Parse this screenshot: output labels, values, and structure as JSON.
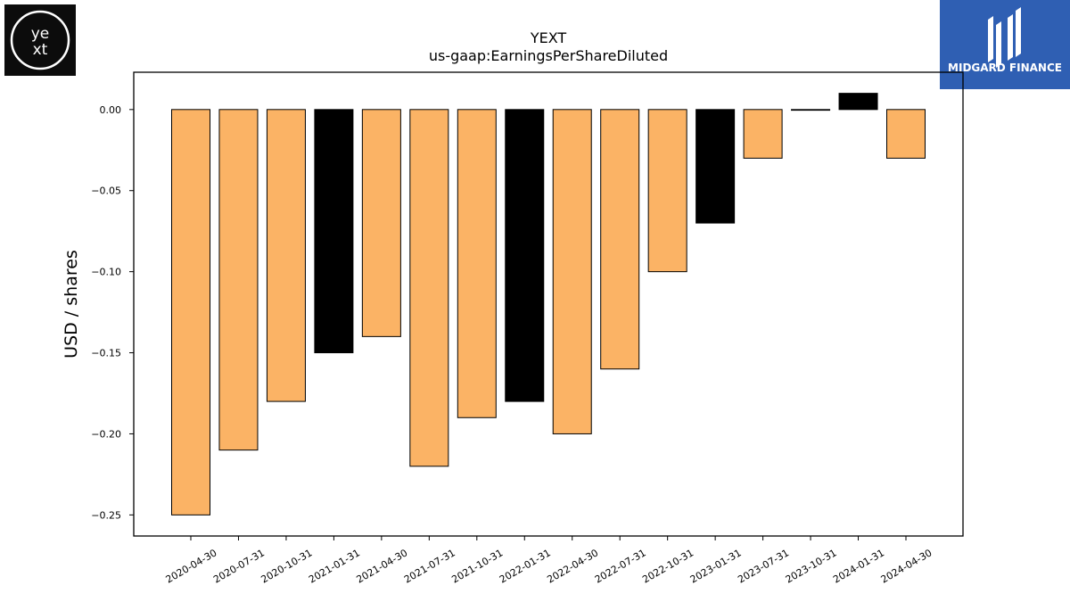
{
  "logos": {
    "left": {
      "text_top": "ye",
      "text_bottom": "xt",
      "bg": "#0c0c0c",
      "fg": "#ffffff"
    },
    "right": {
      "name": "MIDGARD FINANCE",
      "bg": "#2f5fb3",
      "fg": "#ffffff"
    }
  },
  "chart_data": {
    "type": "bar",
    "title": "YEXT",
    "subtitle": "us-gaap:EarningsPerShareDiluted",
    "xlabel": "",
    "ylabel": "USD / shares",
    "categories": [
      "2020-04-30",
      "2020-07-31",
      "2020-10-31",
      "2021-01-31",
      "2021-04-30",
      "2021-07-31",
      "2021-10-31",
      "2022-01-31",
      "2022-04-30",
      "2022-07-31",
      "2022-10-31",
      "2023-01-31",
      "2023-07-31",
      "2023-10-31",
      "2024-01-31",
      "2024-04-30"
    ],
    "values": [
      -0.25,
      -0.21,
      -0.18,
      -0.15,
      -0.14,
      -0.22,
      -0.19,
      -0.18,
      -0.2,
      -0.16,
      -0.1,
      -0.07,
      -0.03,
      0.0,
      0.01,
      -0.03
    ],
    "bar_colors": [
      "#fbb365",
      "#fbb365",
      "#fbb365",
      "#000000",
      "#fbb365",
      "#fbb365",
      "#fbb365",
      "#000000",
      "#fbb365",
      "#fbb365",
      "#fbb365",
      "#000000",
      "#fbb365",
      "#000000",
      "#000000",
      "#fbb365"
    ],
    "yticks": [
      0.0,
      -0.05,
      -0.1,
      -0.15,
      -0.2,
      -0.25
    ],
    "ytick_labels": [
      "0.00",
      "−0.05",
      "−0.10",
      "−0.15",
      "−0.20",
      "−0.25"
    ],
    "ylim": [
      -0.263,
      0.023
    ],
    "grid": false,
    "legend": "none"
  }
}
